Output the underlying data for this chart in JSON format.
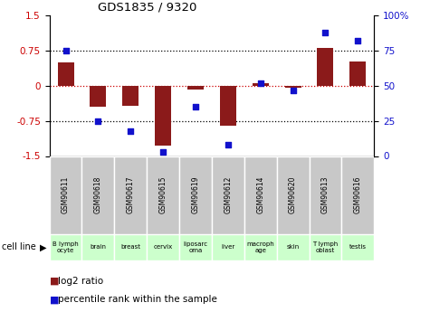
{
  "title": "GDS1835 / 9320",
  "samples": [
    "GSM90611",
    "GSM90618",
    "GSM90617",
    "GSM90615",
    "GSM90619",
    "GSM90612",
    "GSM90614",
    "GSM90620",
    "GSM90613",
    "GSM90616"
  ],
  "cell_lines": [
    "B lymph\nocyte",
    "brain",
    "breast",
    "cervix",
    "liposarc\noma",
    "liver",
    "macroph\nage",
    "skin",
    "T lymph\noblast",
    "testis"
  ],
  "log2_ratio": [
    0.5,
    -0.45,
    -0.42,
    -1.28,
    -0.08,
    -0.85,
    0.05,
    -0.05,
    0.8,
    0.52
  ],
  "percentile_rank": [
    75,
    25,
    18,
    3,
    35,
    8,
    52,
    47,
    88,
    82
  ],
  "ylim_left": [
    -1.5,
    1.5
  ],
  "ylim_right": [
    0,
    100
  ],
  "yticks_left": [
    -1.5,
    -0.75,
    0,
    0.75,
    1.5
  ],
  "yticks_right": [
    0,
    25,
    50,
    75,
    100
  ],
  "bar_color": "#8b1a1a",
  "dot_color": "#1111cc",
  "hline_color": "#cc0000",
  "background_color": "#ffffff",
  "plot_bg_color": "#ffffff",
  "legend_bar_label": "log2 ratio",
  "legend_dot_label": "percentile rank within the sample",
  "cell_line_label": "cell line",
  "gsm_row_color": "#c8c8c8",
  "cell_line_bg_color": "#ccffcc",
  "border_color": "#888888"
}
